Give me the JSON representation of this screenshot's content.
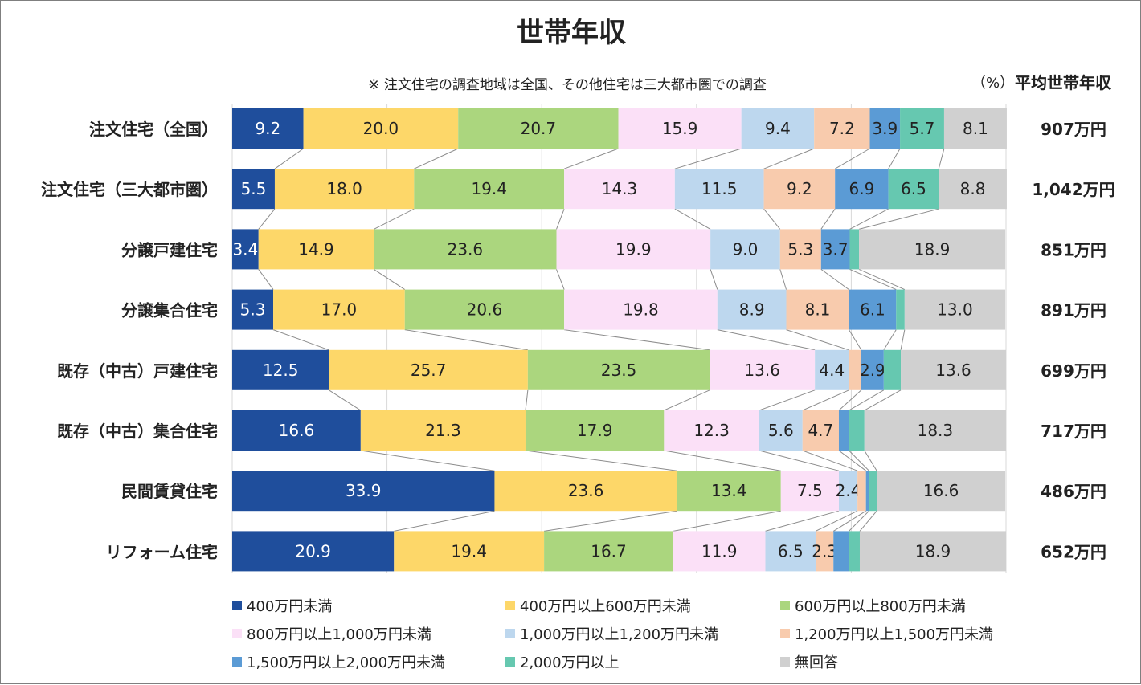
{
  "chart_data": {
    "type": "bar",
    "orientation": "horizontal-stacked-100",
    "title": "世帯年収",
    "note": "※ 注文住宅の調査地域は全国、その他住宅は三大都市圏での調査",
    "unit_label": "（%）",
    "avg_header": "平均世帯年収",
    "xlim": [
      0,
      100
    ],
    "grid": true,
    "legend_position": "bottom",
    "categories": [
      "注文住宅（全国）",
      "注文住宅（三大都市圏）",
      "分譲戸建住宅",
      "分譲集合住宅",
      "既存（中古）戸建住宅",
      "既存（中古）集合住宅",
      "民間賃貸住宅",
      "リフォーム住宅"
    ],
    "averages": [
      "907万円",
      "1,042万円",
      "851万円",
      "891万円",
      "699万円",
      "717万円",
      "486万円",
      "652万円"
    ],
    "series": [
      {
        "name": "400万円未満",
        "color": "#1f4e9c",
        "label_color": "#ffffff",
        "values": [
          9.2,
          5.5,
          3.4,
          5.3,
          12.5,
          16.6,
          33.9,
          20.9
        ],
        "labels": [
          "9.2",
          "5.5",
          "3.4",
          "5.3",
          "12.5",
          "16.6",
          "33.9",
          "20.9"
        ]
      },
      {
        "name": "400万円以上600万円未満",
        "color": "#fdd769",
        "label_color": "#222222",
        "values": [
          20.0,
          18.0,
          14.9,
          17.0,
          25.7,
          21.3,
          23.6,
          19.4
        ],
        "labels": [
          "20.0",
          "18.0",
          "14.9",
          "17.0",
          "25.7",
          "21.3",
          "23.6",
          "19.4"
        ]
      },
      {
        "name": "600万円以上800万円未満",
        "color": "#abd67e",
        "label_color": "#222222",
        "values": [
          20.7,
          19.4,
          23.6,
          20.6,
          23.5,
          17.9,
          13.4,
          16.7
        ],
        "labels": [
          "20.7",
          "19.4",
          "23.6",
          "20.6",
          "23.5",
          "17.9",
          "13.4",
          "16.7"
        ]
      },
      {
        "name": "800万円以上1,000万円未満",
        "color": "#fbe0f7",
        "label_color": "#222222",
        "values": [
          15.9,
          14.3,
          19.9,
          19.8,
          13.6,
          12.3,
          7.5,
          11.9
        ],
        "labels": [
          "15.9",
          "14.3",
          "19.9",
          "19.8",
          "13.6",
          "12.3",
          "7.5",
          "11.9"
        ]
      },
      {
        "name": "1,000万円以上1,200万円未満",
        "color": "#bdd7ee",
        "label_color": "#222222",
        "values": [
          9.4,
          11.5,
          9.0,
          8.9,
          4.4,
          5.6,
          2.4,
          6.5
        ],
        "labels": [
          "9.4",
          "11.5",
          "9.0",
          "8.9",
          "4.4",
          "5.6",
          "2.4",
          "6.5"
        ]
      },
      {
        "name": "1,200万円以上1,500万円未満",
        "color": "#f8cbad",
        "label_color": "#222222",
        "values": [
          7.2,
          9.2,
          5.3,
          8.1,
          1.6,
          4.7,
          1.1,
          2.3
        ],
        "labels": [
          "7.2",
          "9.2",
          "5.3",
          "8.1",
          "",
          "4.7",
          "",
          "2.3"
        ]
      },
      {
        "name": "1,500万円以上2,000万円未満",
        "color": "#5b9bd5",
        "label_color": "#222222",
        "values": [
          3.9,
          6.9,
          3.7,
          6.1,
          2.9,
          1.3,
          0.4,
          2.0
        ],
        "labels": [
          "3.9",
          "6.9",
          "3.7",
          "6.1",
          "2.9",
          "",
          "",
          ""
        ]
      },
      {
        "name": "2,000万円以上",
        "color": "#66c8b0",
        "label_color": "#222222",
        "values": [
          5.7,
          6.5,
          1.2,
          1.1,
          2.2,
          2.0,
          1.0,
          1.4
        ],
        "labels": [
          "5.7",
          "6.5",
          "",
          "",
          "",
          "",
          "",
          ""
        ]
      },
      {
        "name": "無回答",
        "color": "#d0d0d0",
        "label_color": "#222222",
        "values": [
          8.1,
          8.8,
          18.9,
          13.0,
          13.6,
          18.3,
          16.6,
          18.9
        ],
        "labels": [
          "8.1",
          "8.8",
          "18.9",
          "13.0",
          "13.6",
          "18.3",
          "16.6",
          "18.9"
        ]
      }
    ]
  }
}
